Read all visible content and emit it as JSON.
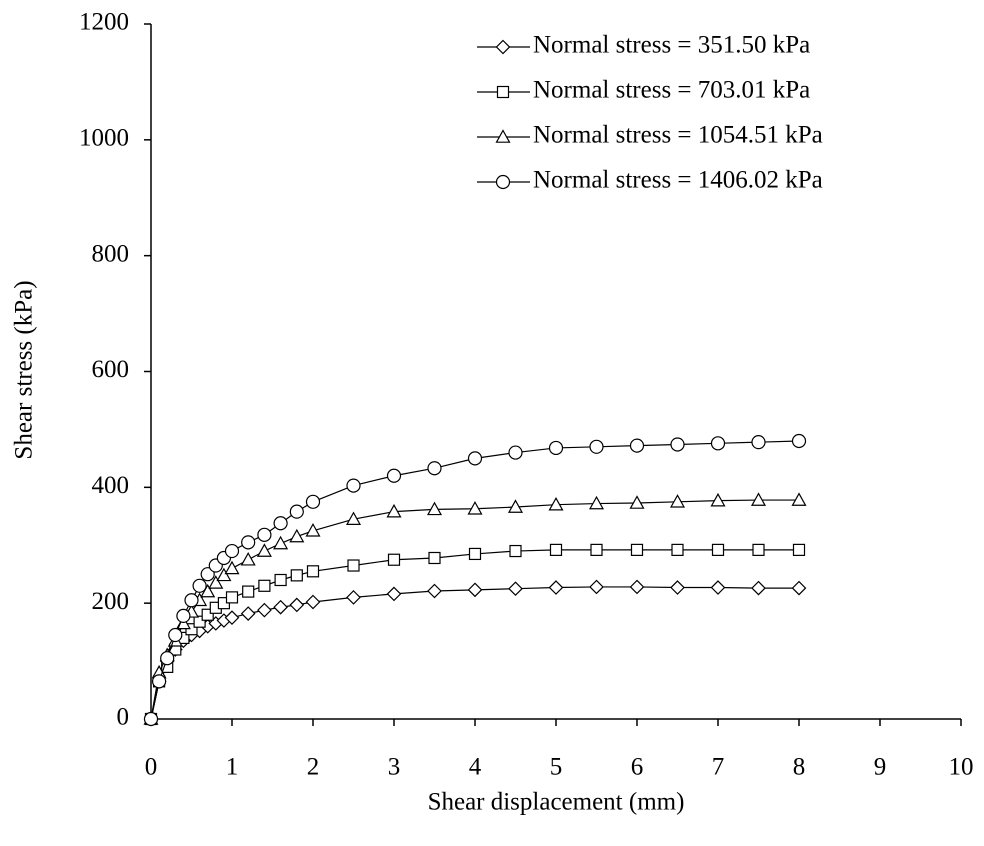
{
  "chart_data": {
    "type": "line",
    "xlabel": "Shear displacement (mm)",
    "ylabel": "Shear stress (kPa)",
    "x": [
      0,
      0.1,
      0.2,
      0.3,
      0.4,
      0.5,
      0.6,
      0.7,
      0.8,
      0.9,
      1.0,
      1.2,
      1.4,
      1.6,
      1.8,
      2.0,
      2.5,
      3.0,
      3.5,
      4.0,
      4.5,
      5.0,
      5.5,
      6.0,
      6.5,
      7.0,
      7.5,
      8.0
    ],
    "series": [
      {
        "name": "Normal stress = 351.50 kPa",
        "color": "#000000",
        "marker": "diamond",
        "values": [
          0,
          65,
          100,
          120,
          135,
          145,
          152,
          160,
          165,
          170,
          175,
          182,
          188,
          193,
          197,
          202,
          210,
          216,
          221,
          223,
          225,
          227,
          228,
          228,
          227,
          227,
          226,
          226
        ]
      },
      {
        "name": "Normal stress = 703.01 kPa",
        "color": "#000000",
        "marker": "square",
        "values": [
          0,
          65,
          90,
          120,
          140,
          155,
          168,
          180,
          192,
          200,
          210,
          220,
          230,
          240,
          248,
          255,
          265,
          275,
          278,
          285,
          290,
          292,
          292,
          292,
          292,
          292,
          292,
          292
        ]
      },
      {
        "name": "Normal stress = 1054.51 kPa",
        "color": "#000000",
        "marker": "triangle",
        "values": [
          0,
          80,
          110,
          135,
          165,
          185,
          205,
          220,
          235,
          248,
          260,
          275,
          290,
          303,
          315,
          325,
          345,
          358,
          362,
          363,
          366,
          370,
          372,
          373,
          375,
          377,
          378,
          378
        ]
      },
      {
        "name": "Normal stress = 1406.02 kPa",
        "color": "#000000",
        "marker": "circle",
        "values": [
          0,
          65,
          105,
          145,
          178,
          205,
          230,
          250,
          265,
          278,
          290,
          305,
          318,
          338,
          358,
          375,
          403,
          420,
          433,
          450,
          460,
          468,
          470,
          472,
          474,
          476,
          478,
          480
        ]
      }
    ],
    "xlim": [
      0,
      10
    ],
    "xticks": [
      0,
      1,
      2,
      3,
      4,
      5,
      6,
      7,
      8,
      9,
      10
    ],
    "ylim": [
      0,
      1200
    ],
    "yticks": [
      0,
      200,
      400,
      600,
      800,
      1000,
      1200
    ],
    "grid": false,
    "legend": "top-right"
  }
}
